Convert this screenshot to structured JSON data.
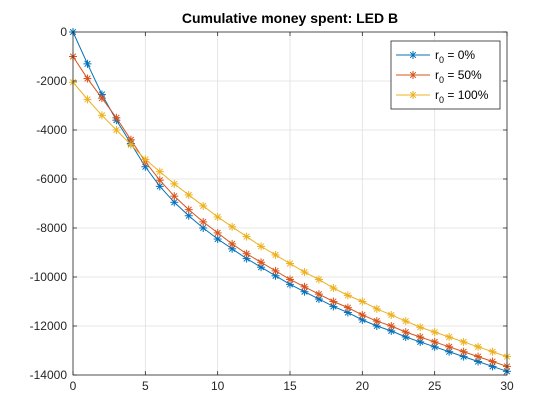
{
  "chart_data": {
    "type": "line",
    "title": "Cumulative money spent: LED B",
    "xlabel": "",
    "ylabel": "",
    "xlim": [
      0,
      30
    ],
    "ylim": [
      -14000,
      0
    ],
    "xticks": [
      0,
      5,
      10,
      15,
      20,
      25,
      30
    ],
    "yticks": [
      0,
      -2000,
      -4000,
      -6000,
      -8000,
      -10000,
      -12000,
      -14000
    ],
    "grid": true,
    "legend_position": "top-right",
    "marker": "asterisk",
    "x": [
      0,
      1,
      2,
      3,
      4,
      5,
      6,
      7,
      8,
      9,
      10,
      11,
      12,
      13,
      14,
      15,
      16,
      17,
      18,
      19,
      20,
      21,
      22,
      23,
      24,
      25,
      26,
      27,
      28,
      29,
      30
    ],
    "series": [
      {
        "name_main": "r",
        "name_sub": "0",
        "name_rest": " = 0%",
        "color": "#0072BD",
        "values": [
          0,
          -1300,
          -2550,
          -3600,
          -4550,
          -5500,
          -6300,
          -6950,
          -7500,
          -8000,
          -8450,
          -8850,
          -9250,
          -9600,
          -9950,
          -10300,
          -10600,
          -10900,
          -11200,
          -11450,
          -11750,
          -12000,
          -12200,
          -12450,
          -12650,
          -12850,
          -13050,
          -13250,
          -13450,
          -13650,
          -13850
        ]
      },
      {
        "name_main": "r",
        "name_sub": "0",
        "name_rest": " = 50%",
        "color": "#D95319",
        "values": [
          -1000,
          -1900,
          -2700,
          -3500,
          -4400,
          -5300,
          -6050,
          -6700,
          -7250,
          -7750,
          -8200,
          -8650,
          -9050,
          -9400,
          -9750,
          -10100,
          -10400,
          -10700,
          -11000,
          -11250,
          -11550,
          -11800,
          -12000,
          -12250,
          -12450,
          -12650,
          -12850,
          -13050,
          -13250,
          -13450,
          -13650
        ]
      },
      {
        "name_main": "r",
        "name_sub": "0",
        "name_rest": " = 100%",
        "color": "#EDB120",
        "values": [
          -2050,
          -2750,
          -3400,
          -4000,
          -4600,
          -5200,
          -5700,
          -6200,
          -6650,
          -7100,
          -7550,
          -7950,
          -8350,
          -8750,
          -9100,
          -9450,
          -9800,
          -10100,
          -10450,
          -10750,
          -11000,
          -11300,
          -11550,
          -11800,
          -12050,
          -12250,
          -12450,
          -12650,
          -12850,
          -13050,
          -13250
        ]
      }
    ]
  }
}
